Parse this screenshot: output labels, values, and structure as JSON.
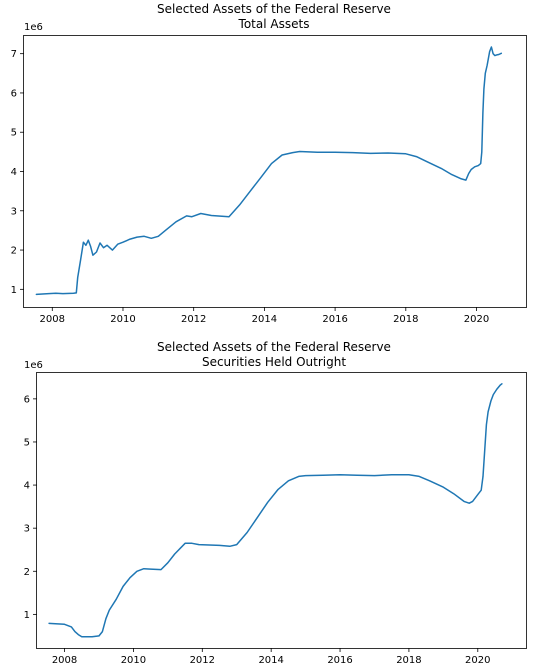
{
  "chart_data": [
    {
      "type": "line",
      "title": "Selected Assets of the Federal Reserve",
      "subtitle": "Total Assets",
      "xlabel": "",
      "ylabel": "",
      "y_offset_label": "1e6",
      "xlim": [
        2007.2,
        2021.4
      ],
      "ylim": [
        0.55,
        7.45
      ],
      "x_ticks": [
        2008,
        2010,
        2012,
        2014,
        2016,
        2018,
        2020
      ],
      "x_tick_labels": [
        "2008",
        "2010",
        "2012",
        "2014",
        "2016",
        "2018",
        "2020"
      ],
      "y_ticks": [
        1,
        2,
        3,
        4,
        5,
        6,
        7
      ],
      "y_tick_labels": [
        "1",
        "2",
        "3",
        "4",
        "5",
        "6",
        "7"
      ],
      "grid": false,
      "series": [
        {
          "color": "#1f77b4",
          "x": [
            2007.55,
            2007.9,
            2008.1,
            2008.3,
            2008.6,
            2008.68,
            2008.72,
            2008.8,
            2008.88,
            2008.95,
            2009.02,
            2009.08,
            2009.15,
            2009.25,
            2009.35,
            2009.45,
            2009.55,
            2009.7,
            2009.85,
            2010.0,
            2010.2,
            2010.4,
            2010.6,
            2010.8,
            2011.0,
            2011.2,
            2011.5,
            2011.8,
            2011.95,
            2012.2,
            2012.5,
            2012.8,
            2013.0,
            2013.3,
            2013.6,
            2013.9,
            2014.2,
            2014.5,
            2014.8,
            2015.0,
            2015.5,
            2016.0,
            2016.5,
            2017.0,
            2017.5,
            2018.0,
            2018.3,
            2018.6,
            2019.0,
            2019.3,
            2019.55,
            2019.7,
            2019.78,
            2019.85,
            2019.95,
            2020.05,
            2020.12,
            2020.15,
            2020.18,
            2020.21,
            2020.25,
            2020.3,
            2020.37,
            2020.42,
            2020.47,
            2020.52,
            2020.57,
            2020.63,
            2020.7
          ],
          "y": [
            0.87,
            0.89,
            0.9,
            0.89,
            0.9,
            0.91,
            1.3,
            1.75,
            2.2,
            2.12,
            2.25,
            2.1,
            1.87,
            1.95,
            2.18,
            2.06,
            2.12,
            2.0,
            2.15,
            2.2,
            2.28,
            2.33,
            2.35,
            2.3,
            2.35,
            2.5,
            2.72,
            2.87,
            2.85,
            2.93,
            2.88,
            2.86,
            2.85,
            3.15,
            3.5,
            3.85,
            4.2,
            4.42,
            4.48,
            4.51,
            4.49,
            4.49,
            4.48,
            4.46,
            4.47,
            4.45,
            4.38,
            4.25,
            4.08,
            3.92,
            3.82,
            3.78,
            3.95,
            4.05,
            4.12,
            4.15,
            4.2,
            4.5,
            5.5,
            6.1,
            6.5,
            6.7,
            7.05,
            7.17,
            7.0,
            6.95,
            6.97,
            6.98,
            7.01
          ]
        }
      ]
    },
    {
      "type": "line",
      "title": "Selected Assets of the Federal Reserve",
      "subtitle": "Securities Held Outright",
      "xlabel": "",
      "ylabel": "",
      "y_offset_label": "1e6",
      "xlim": [
        2007.2,
        2021.4
      ],
      "ylim": [
        0.22,
        6.6
      ],
      "x_ticks": [
        2008,
        2010,
        2012,
        2014,
        2016,
        2018,
        2020
      ],
      "x_tick_labels": [
        "2008",
        "2010",
        "2012",
        "2014",
        "2016",
        "2018",
        "2020"
      ],
      "y_ticks": [
        1,
        2,
        3,
        4,
        5,
        6
      ],
      "y_tick_labels": [
        "1",
        "2",
        "3",
        "4",
        "5",
        "6"
      ],
      "grid": false,
      "series": [
        {
          "color": "#1f77b4",
          "x": [
            2007.55,
            2007.8,
            2008.0,
            2008.2,
            2008.3,
            2008.4,
            2008.5,
            2008.6,
            2008.8,
            2009.0,
            2009.1,
            2009.2,
            2009.3,
            2009.5,
            2009.7,
            2009.9,
            2010.1,
            2010.3,
            2010.5,
            2010.8,
            2011.0,
            2011.2,
            2011.5,
            2011.7,
            2011.9,
            2012.2,
            2012.5,
            2012.8,
            2013.0,
            2013.3,
            2013.6,
            2013.9,
            2014.2,
            2014.5,
            2014.8,
            2015.0,
            2015.5,
            2016.0,
            2016.5,
            2017.0,
            2017.5,
            2018.0,
            2018.3,
            2018.6,
            2019.0,
            2019.3,
            2019.6,
            2019.75,
            2019.85,
            2020.0,
            2020.1,
            2020.15,
            2020.2,
            2020.25,
            2020.3,
            2020.38,
            2020.45,
            2020.55,
            2020.65,
            2020.7
          ],
          "y": [
            0.79,
            0.78,
            0.77,
            0.71,
            0.6,
            0.53,
            0.48,
            0.48,
            0.48,
            0.5,
            0.6,
            0.9,
            1.1,
            1.35,
            1.65,
            1.85,
            2.0,
            2.06,
            2.05,
            2.04,
            2.2,
            2.4,
            2.65,
            2.65,
            2.62,
            2.61,
            2.6,
            2.58,
            2.62,
            2.9,
            3.25,
            3.6,
            3.9,
            4.1,
            4.2,
            4.22,
            4.23,
            4.24,
            4.23,
            4.22,
            4.24,
            4.24,
            4.2,
            4.1,
            3.95,
            3.8,
            3.62,
            3.58,
            3.62,
            3.78,
            3.88,
            4.2,
            4.8,
            5.4,
            5.7,
            5.95,
            6.1,
            6.22,
            6.32,
            6.35
          ]
        }
      ]
    }
  ]
}
